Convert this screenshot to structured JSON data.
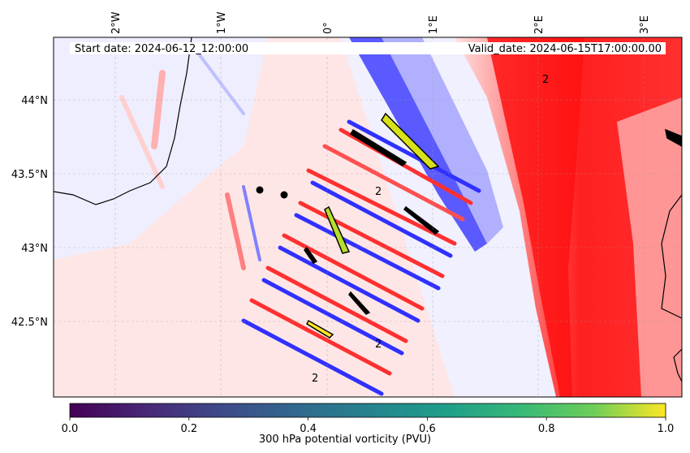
{
  "map": {
    "start_label": "Start date: 2024-06-12_12:00:00",
    "valid_label": "Valid_date: 2024-06-15T17:00:00.00",
    "lon_labels": [
      "2°W",
      "1°W",
      "0°",
      "1°E",
      "2°E",
      "3°E"
    ],
    "lat_labels": [
      "44°N",
      "43.5°N",
      "43°N",
      "42.5°N"
    ],
    "contour_label": "2",
    "colors": {
      "positive": "#ff0000",
      "negative": "#0000ff",
      "coast": "#000000"
    }
  },
  "colorbar": {
    "label": "300 hPa potential vorticity (PVU)",
    "ticks": [
      "0.0",
      "0.2",
      "0.4",
      "0.6",
      "0.8",
      "1.0"
    ],
    "range": [
      0,
      1
    ],
    "colormap": "viridis"
  }
}
